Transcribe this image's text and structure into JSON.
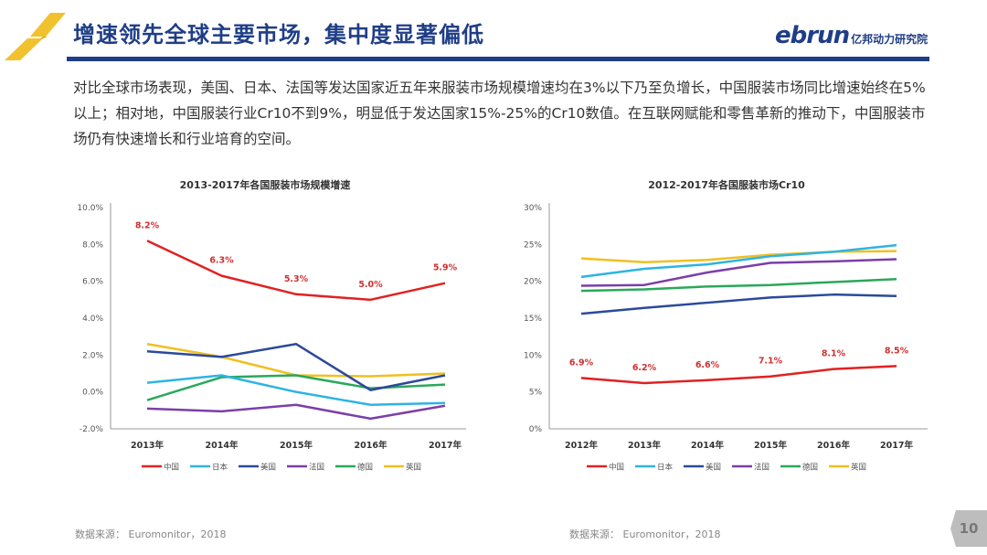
{
  "header": {
    "title": "增速领先全球主要市场，集中度显著偏低",
    "logo_en": "ebrun",
    "logo_cn": "亿邦动力研究院",
    "accent_color": "#1f3e86"
  },
  "description": "对比全球市场表现，美国、日本、法国等发达国家近五年来服装市场规模增速均在3%以下乃至负增长，中国服装市场同比增速始终在5%以上；相对地，中国服装行业Cr10不到9%，明显低于发达国家15%-25%的Cr10数值。在互联网赋能和零售革新的推动下，中国服装市场仍有快速增长和行业培育的空间。",
  "sources": [
    "数据来源： Euromonitor，2018",
    "数据来源： Euromonitor，2018"
  ],
  "page_number": "10",
  "chart_data": [
    {
      "type": "line",
      "title": "2013-2017年各国服装市场规模增速",
      "categories": [
        "2013年",
        "2014年",
        "2015年",
        "2016年",
        "2017年"
      ],
      "ylim": [
        -2,
        10
      ],
      "yticks": [
        "10.0%",
        "8.0%",
        "6.0%",
        "4.0%",
        "2.0%",
        "0.0%",
        "-2.0%"
      ],
      "ytick_values": [
        10,
        8,
        6,
        4,
        2,
        0,
        -2
      ],
      "legend_position": "bottom",
      "grid": false,
      "series": [
        {
          "name": "中国",
          "color": "#e02222",
          "values": [
            8.2,
            6.3,
            5.3,
            5.0,
            5.9
          ],
          "labels": [
            "8.2%",
            "6.3%",
            "5.3%",
            "5.0%",
            "5.9%"
          ]
        },
        {
          "name": "日本",
          "color": "#2eb4e2",
          "values": [
            0.5,
            0.9,
            0.0,
            -0.7,
            -0.6
          ]
        },
        {
          "name": "美国",
          "color": "#2c4a9a",
          "values": [
            2.2,
            1.9,
            2.6,
            0.1,
            0.9
          ]
        },
        {
          "name": "法国",
          "color": "#7a3fa8",
          "values": [
            -0.9,
            -1.05,
            -0.7,
            -1.45,
            -0.75
          ]
        },
        {
          "name": "德国",
          "color": "#2aa85a",
          "values": [
            -0.45,
            0.8,
            0.9,
            0.2,
            0.4
          ]
        },
        {
          "name": "英国",
          "color": "#f0c020",
          "values": [
            2.6,
            1.9,
            0.9,
            0.85,
            1.0
          ]
        }
      ]
    },
    {
      "type": "line",
      "title": "2012-2017年各国服装市场Cr10",
      "categories": [
        "2012年",
        "2013年",
        "2014年",
        "2015年",
        "2016年",
        "2017年"
      ],
      "ylim": [
        0,
        30
      ],
      "yticks": [
        "30%",
        "25%",
        "20%",
        "15%",
        "10%",
        "5%",
        "0%"
      ],
      "ytick_values": [
        30,
        25,
        20,
        15,
        10,
        5,
        0
      ],
      "legend_position": "bottom",
      "grid": false,
      "series": [
        {
          "name": "中国",
          "color": "#e02222",
          "values": [
            6.9,
            6.2,
            6.6,
            7.1,
            8.1,
            8.5
          ],
          "labels": [
            "6.9%",
            "6.2%",
            "6.6%",
            "7.1%",
            "8.1%",
            "8.5%"
          ]
        },
        {
          "name": "日本",
          "color": "#2eb4e2",
          "values": [
            20.6,
            21.7,
            22.3,
            23.4,
            24.0,
            24.9
          ]
        },
        {
          "name": "美国",
          "color": "#2c4a9a",
          "values": [
            15.6,
            16.4,
            17.1,
            17.8,
            18.2,
            18.0
          ]
        },
        {
          "name": "法国",
          "color": "#7a3fa8",
          "values": [
            19.4,
            19.5,
            21.2,
            22.5,
            22.7,
            23.0
          ]
        },
        {
          "name": "德国",
          "color": "#2aa85a",
          "values": [
            18.7,
            18.9,
            19.3,
            19.5,
            19.9,
            20.3
          ]
        },
        {
          "name": "英国",
          "color": "#f0c020",
          "values": [
            23.1,
            22.6,
            22.9,
            23.6,
            24.0,
            24.1
          ]
        }
      ]
    }
  ]
}
